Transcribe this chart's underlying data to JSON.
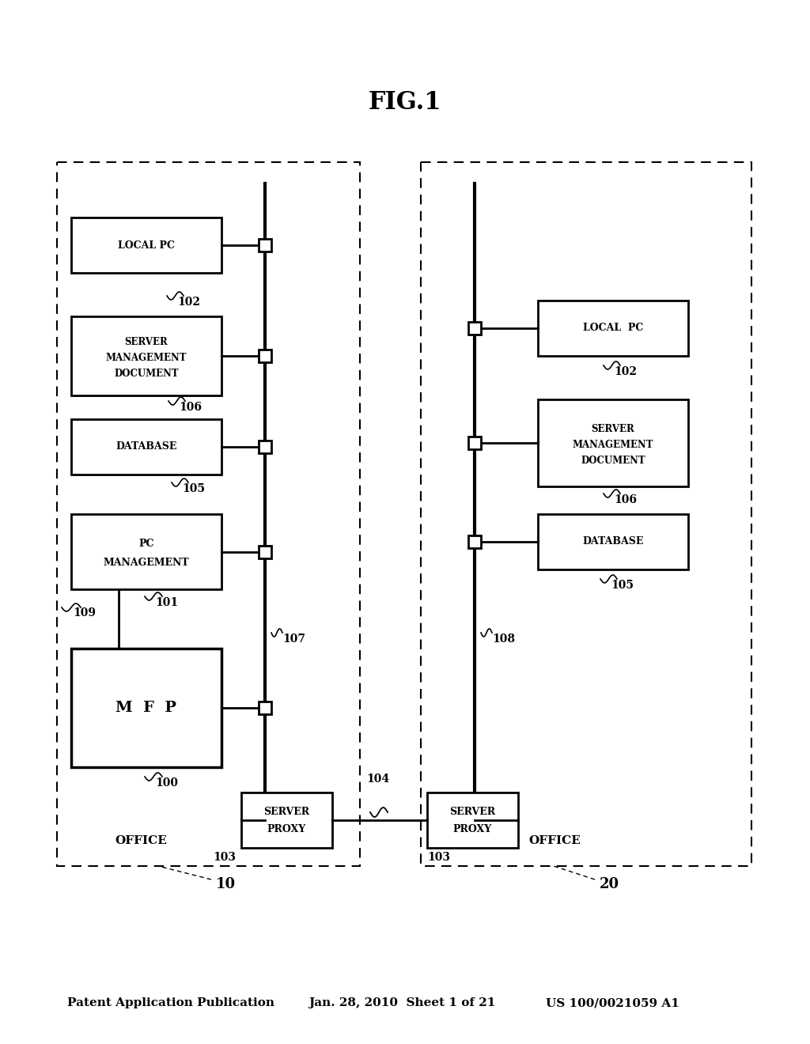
{
  "bg_color": "#ffffff",
  "header_left": "Patent Application Publication",
  "header_mid": "Jan. 28, 2010  Sheet 1 of 21",
  "header_right": "US 100/0021059 A1",
  "fig_label": "FIG.1"
}
